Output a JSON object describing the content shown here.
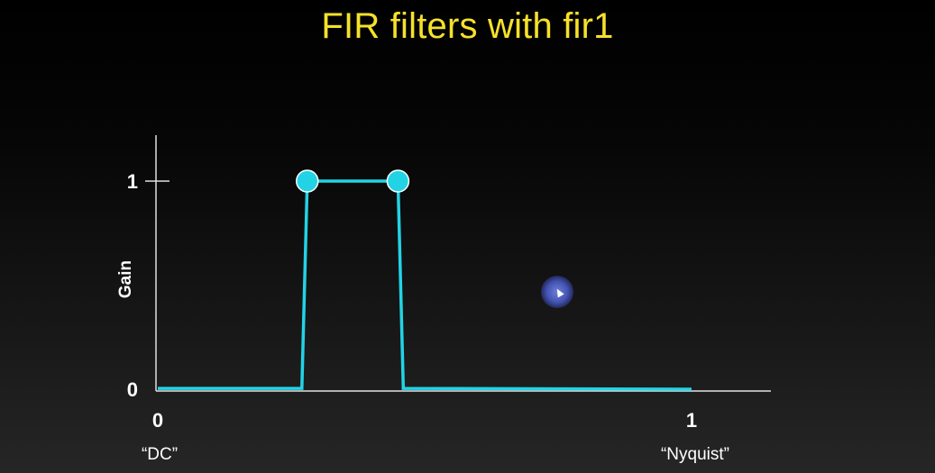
{
  "slide": {
    "title": "FIR filters with fir1"
  },
  "colors": {
    "title": "#f5e12a",
    "series": "#22d3e6",
    "axis": "#e0e0e0",
    "text": "#ffffff",
    "background": "#0c0c0c"
  },
  "chart_data": {
    "type": "line",
    "title": "",
    "ylabel": "Gain",
    "xlabel": "",
    "xlim": [
      0,
      1.13
    ],
    "ylim": [
      0,
      1.25
    ],
    "x_ticks": [
      {
        "value": 0,
        "label": "0",
        "sublabel": "“DC”"
      },
      {
        "value": 1,
        "label": "1",
        "sublabel": "“Nyquist”"
      }
    ],
    "y_ticks": [
      {
        "value": 0,
        "label": "0"
      },
      {
        "value": 1,
        "label": "1"
      }
    ],
    "grid": false,
    "series": [
      {
        "x": [
          0,
          0.27,
          0.28,
          0.45,
          0.46,
          1
        ],
        "y": [
          0.004,
          0.004,
          1,
          1,
          0.004,
          0
        ]
      }
    ],
    "markers": [
      {
        "x": 0.28,
        "y": 1
      },
      {
        "x": 0.45,
        "y": 1
      }
    ]
  }
}
